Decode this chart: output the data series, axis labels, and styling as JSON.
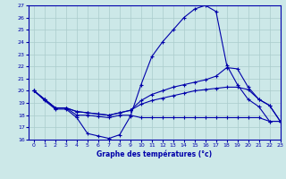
{
  "title": "Graphe des températures (°c)",
  "bg_color": "#cce8e8",
  "line_color": "#0000aa",
  "grid_color": "#aacccc",
  "xlim": [
    -0.5,
    23
  ],
  "ylim": [
    16,
    27
  ],
  "yticks": [
    16,
    17,
    18,
    19,
    20,
    21,
    22,
    23,
    24,
    25,
    26,
    27
  ],
  "xticks": [
    0,
    1,
    2,
    3,
    4,
    5,
    6,
    7,
    8,
    9,
    10,
    11,
    12,
    13,
    14,
    15,
    16,
    17,
    18,
    19,
    20,
    21,
    22,
    23
  ],
  "series": [
    {
      "x": [
        0,
        1,
        2,
        3,
        4,
        5,
        6,
        7,
        8,
        9,
        10,
        11,
        12,
        13,
        14,
        15,
        16,
        17,
        18,
        19,
        20,
        21,
        22,
        23
      ],
      "y": [
        20.0,
        19.2,
        18.5,
        18.5,
        17.8,
        16.5,
        16.3,
        16.1,
        16.4,
        17.9,
        20.5,
        22.8,
        24.0,
        25.0,
        26.0,
        26.7,
        27.0,
        26.5,
        22.1,
        20.5,
        19.3,
        18.7,
        17.5,
        17.5
      ]
    },
    {
      "x": [
        0,
        1,
        2,
        3,
        4,
        5,
        6,
        7,
        8,
        9,
        10,
        11,
        12,
        13,
        14,
        15,
        16,
        17,
        18,
        19,
        20,
        21,
        22,
        23
      ],
      "y": [
        20.0,
        19.3,
        18.6,
        18.6,
        18.3,
        18.2,
        18.1,
        18.0,
        18.2,
        18.4,
        19.2,
        19.7,
        20.0,
        20.3,
        20.5,
        20.7,
        20.9,
        21.2,
        21.9,
        21.8,
        20.3,
        19.3,
        18.8,
        17.5
      ]
    },
    {
      "x": [
        0,
        1,
        2,
        3,
        4,
        5,
        6,
        7,
        8,
        9,
        10,
        11,
        12,
        13,
        14,
        15,
        16,
        17,
        18,
        19,
        20,
        21,
        22,
        23
      ],
      "y": [
        20.0,
        19.3,
        18.6,
        18.6,
        18.3,
        18.2,
        18.1,
        18.0,
        18.2,
        18.4,
        18.9,
        19.2,
        19.4,
        19.6,
        19.8,
        20.0,
        20.1,
        20.2,
        20.3,
        20.3,
        20.1,
        19.3,
        18.8,
        17.5
      ]
    },
    {
      "x": [
        0,
        1,
        2,
        3,
        4,
        5,
        6,
        7,
        8,
        9,
        10,
        11,
        12,
        13,
        14,
        15,
        16,
        17,
        18,
        19,
        20,
        21,
        22,
        23
      ],
      "y": [
        20.0,
        19.3,
        18.6,
        18.6,
        18.0,
        18.0,
        17.9,
        17.8,
        18.0,
        18.0,
        17.8,
        17.8,
        17.8,
        17.8,
        17.8,
        17.8,
        17.8,
        17.8,
        17.8,
        17.8,
        17.8,
        17.8,
        17.5,
        17.5
      ]
    }
  ]
}
